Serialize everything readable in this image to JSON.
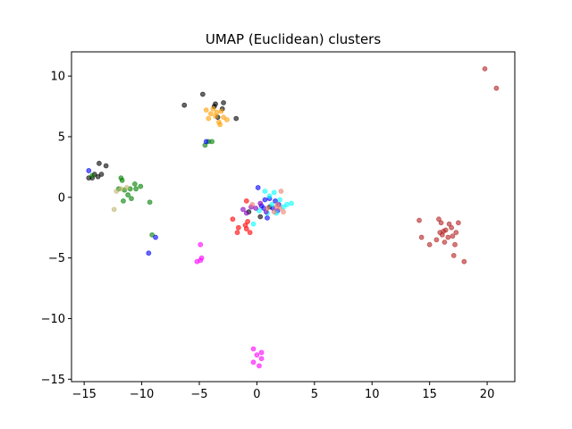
{
  "chart_data": {
    "type": "scatter",
    "title": "UMAP (Euclidean) clusters",
    "xlabel": "",
    "ylabel": "",
    "xlim": [
      -16.1,
      22.4
    ],
    "ylim": [
      -15.2,
      12.0
    ],
    "xticks": [
      -15,
      -10,
      -5,
      0,
      5,
      10,
      15,
      20
    ],
    "yticks": [
      10,
      5,
      0,
      -5,
      -10,
      -15
    ],
    "grid": false,
    "legend": "none",
    "marker_alpha": 0.6,
    "series": [
      {
        "color": "#000000",
        "points": [
          [
            -14.6,
            1.6
          ],
          [
            -14.3,
            1.6
          ],
          [
            -14.1,
            1.9
          ],
          [
            -13.7,
            2.8
          ],
          [
            -13.5,
            1.9
          ],
          [
            -13.1,
            2.6
          ],
          [
            -13.8,
            1.7
          ],
          [
            -6.3,
            7.6
          ],
          [
            -4.7,
            8.5
          ],
          [
            -3.7,
            7.5
          ],
          [
            -3.6,
            7.7
          ],
          [
            -3.4,
            6.6
          ],
          [
            -3.0,
            7.3
          ],
          [
            -2.9,
            7.8
          ],
          [
            -1.8,
            6.5
          ],
          [
            -0.7,
            -1.2
          ],
          [
            0.3,
            -1.6
          ],
          [
            1.1,
            -0.8
          ]
        ]
      },
      {
        "color": "#ff9f00",
        "points": [
          [
            -4.2,
            6.5
          ],
          [
            -4.0,
            6.9
          ],
          [
            -3.8,
            7.3
          ],
          [
            -3.6,
            6.7
          ],
          [
            -3.5,
            7.0
          ],
          [
            -3.3,
            6.2
          ],
          [
            -3.1,
            7.1
          ],
          [
            -2.9,
            6.6
          ],
          [
            -2.6,
            6.4
          ],
          [
            -4.4,
            7.2
          ],
          [
            -3.2,
            6.0
          ]
        ]
      },
      {
        "color": "#008000",
        "points": [
          [
            -14.3,
            1.8
          ],
          [
            -12.0,
            0.7
          ],
          [
            -11.8,
            1.6
          ],
          [
            -11.7,
            1.4
          ],
          [
            -11.5,
            0.6
          ],
          [
            -11.2,
            0.2
          ],
          [
            -11.0,
            0.7
          ],
          [
            -10.9,
            -0.1
          ],
          [
            -10.6,
            1.1
          ],
          [
            -10.5,
            0.7
          ],
          [
            -10.1,
            0.9
          ],
          [
            -11.6,
            -0.3
          ],
          [
            -9.3,
            -0.4
          ],
          [
            -9.1,
            -3.1
          ],
          [
            -4.5,
            4.3
          ],
          [
            -4.2,
            4.6
          ],
          [
            -3.9,
            4.6
          ]
        ]
      },
      {
        "color": "#bdb76b",
        "points": [
          [
            -12.4,
            -1.0
          ],
          [
            -12.2,
            0.5
          ],
          [
            -11.8,
            0.7
          ],
          [
            -11.3,
            0.8
          ]
        ]
      },
      {
        "color": "#0000ff",
        "points": [
          [
            -14.6,
            2.2
          ],
          [
            -9.4,
            -4.6
          ],
          [
            -8.8,
            -3.3
          ],
          [
            -4.4,
            4.6
          ],
          [
            0.1,
            0.8
          ],
          [
            0.4,
            -0.7
          ],
          [
            0.7,
            -0.2
          ],
          [
            0.9,
            -1.7
          ],
          [
            1.1,
            -0.1
          ],
          [
            1.4,
            -0.9
          ],
          [
            1.6,
            -0.3
          ],
          [
            1.8,
            -1.1
          ],
          [
            0.6,
            -0.9
          ],
          [
            1.9,
            -0.6
          ]
        ]
      },
      {
        "color": "#00ffff",
        "points": [
          [
            0.7,
            0.5
          ],
          [
            1.1,
            0.1
          ],
          [
            1.3,
            -0.6
          ],
          [
            1.7,
            -1.3
          ],
          [
            2.0,
            -0.2
          ],
          [
            2.3,
            -0.8
          ],
          [
            2.6,
            -0.6
          ],
          [
            3.0,
            -0.5
          ],
          [
            0.9,
            -1.3
          ],
          [
            0.2,
            -1.1
          ],
          [
            -0.3,
            -2.2
          ],
          [
            1.5,
            0.4
          ]
        ]
      },
      {
        "color": "#8000c0",
        "points": [
          [
            -1.2,
            -1.0
          ],
          [
            -0.9,
            -1.3
          ],
          [
            -0.5,
            -0.8
          ],
          [
            -0.1,
            -0.9
          ],
          [
            0.3,
            -0.5
          ],
          [
            0.8,
            -1.2
          ]
        ]
      },
      {
        "color": "#ff0000",
        "points": [
          [
            -2.1,
            -1.8
          ],
          [
            -1.6,
            -2.5
          ],
          [
            -0.9,
            -0.3
          ],
          [
            -0.8,
            -2.0
          ],
          [
            -0.6,
            -2.9
          ],
          [
            -1.0,
            -2.3
          ],
          [
            -1.7,
            -2.9
          ],
          [
            -0.9,
            -2.6
          ]
        ]
      },
      {
        "color": "#f08070",
        "points": [
          [
            1.7,
            -0.8
          ],
          [
            2.0,
            -0.9
          ],
          [
            2.1,
            0.5
          ],
          [
            2.3,
            -1.2
          ],
          [
            1.5,
            -1.2
          ],
          [
            1.8,
            -0.6
          ],
          [
            0.9,
            -0.9
          ],
          [
            -0.4,
            -0.6
          ]
        ]
      },
      {
        "color": "#b22222",
        "points": [
          [
            14.1,
            -1.9
          ],
          [
            14.3,
            -3.3
          ],
          [
            15.0,
            -3.9
          ],
          [
            15.6,
            -3.5
          ],
          [
            15.8,
            -1.8
          ],
          [
            15.9,
            -2.9
          ],
          [
            16.0,
            -2.1
          ],
          [
            16.1,
            -3.1
          ],
          [
            16.3,
            -3.7
          ],
          [
            16.4,
            -2.7
          ],
          [
            16.6,
            -3.3
          ],
          [
            16.7,
            -2.2
          ],
          [
            16.9,
            -2.5
          ],
          [
            17.0,
            -3.2
          ],
          [
            17.1,
            -4.8
          ],
          [
            17.2,
            -3.9
          ],
          [
            17.3,
            -2.9
          ],
          [
            17.5,
            -2.1
          ],
          [
            18.0,
            -5.3
          ],
          [
            16.2,
            -2.8
          ],
          [
            19.8,
            10.6
          ],
          [
            20.8,
            9.0
          ]
        ]
      },
      {
        "color": "#ff00ff",
        "points": [
          [
            -5.2,
            -5.3
          ],
          [
            -4.9,
            -5.2
          ],
          [
            -4.8,
            -5.0
          ],
          [
            -4.9,
            -3.9
          ],
          [
            -0.3,
            -12.5
          ],
          [
            0.0,
            -13.0
          ],
          [
            -0.3,
            -13.6
          ],
          [
            0.2,
            -13.9
          ],
          [
            0.4,
            -13.3
          ],
          [
            0.4,
            -12.8
          ]
        ]
      }
    ]
  }
}
